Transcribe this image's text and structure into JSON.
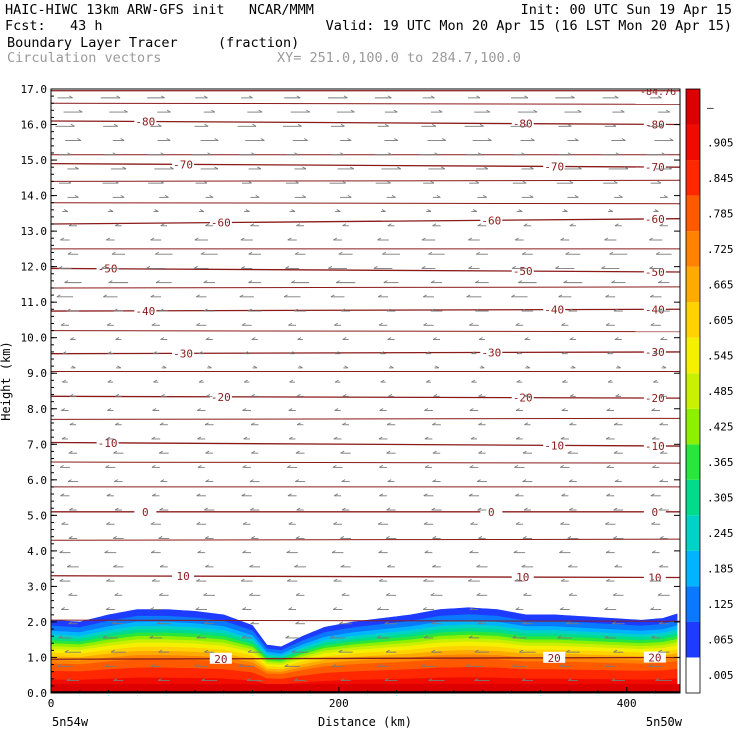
{
  "header": {
    "line1_left": "HAIC-HIWC 13km ARW-GFS init   NCAR/MMM",
    "line1_right": "Init: 00 UTC Sun 19 Apr 15",
    "line2_left": "Fcst:   43 h",
    "line2_right": "Valid: 19 UTC Mon 20 Apr 15 (16 LST Mon 20 Apr 15)",
    "line3_left": "Boundary Layer Tracer",
    "line3_unit": "(fraction)",
    "line4_left": "Circulation vectors",
    "line4_xy": "XY= 251.0,100.0 to 284.7,100.0"
  },
  "chart_data": {
    "type": "heatmap",
    "ylabel": "Height (km)",
    "xlabel": "Distance (km)",
    "ylim": [
      0,
      17
    ],
    "xlim": [
      0,
      437
    ],
    "y_ticks": [
      "0.0",
      "1.0",
      "2.0",
      "3.0",
      "4.0",
      "5.0",
      "6.0",
      "7.0",
      "8.0",
      "9.0",
      "10.0",
      "11.0",
      "12.0",
      "13.0",
      "14.0",
      "15.0",
      "16.0",
      "17.0"
    ],
    "x_ticks": [
      "0",
      "200",
      "400"
    ],
    "x_end_labels": {
      "left": "5n54w",
      "right": "5n50w"
    },
    "colorbar": {
      "labels": [
        ".005",
        ".065",
        ".125",
        ".185",
        ".245",
        ".305",
        ".365",
        ".425",
        ".485",
        ".545",
        ".605",
        ".665",
        ".725",
        ".785",
        ".845",
        ".905",
        "–"
      ],
      "colors": [
        "#ffffff",
        "#1e3cff",
        "#0a78ff",
        "#00b4ff",
        "#00d2c8",
        "#00dc8c",
        "#28e63c",
        "#8cf000",
        "#c8f000",
        "#f5f000",
        "#ffd200",
        "#ffaa00",
        "#ff8200",
        "#ff5a00",
        "#ff2800",
        "#f00a00",
        "#dc0000"
      ]
    },
    "temperature_contours": {
      "unit": "°C",
      "lines": [
        {
          "value": -84.76,
          "label": "-84.76",
          "y": [
            16.95,
            16.95
          ]
        },
        {
          "value": -80,
          "label": "-80",
          "y": [
            16.1,
            16.0
          ]
        },
        {
          "value": -70,
          "label": "-70",
          "y": [
            14.9,
            14.8
          ]
        },
        {
          "value": -60,
          "label": "-60",
          "y": [
            13.2,
            13.35
          ]
        },
        {
          "value": -50,
          "label": "-50",
          "y": [
            11.95,
            11.85
          ]
        },
        {
          "value": -40,
          "label": "-40",
          "y": [
            10.75,
            10.8
          ]
        },
        {
          "value": -30,
          "label": "-30",
          "y": [
            9.55,
            9.6
          ]
        },
        {
          "value": -20,
          "label": "-20",
          "y": [
            8.35,
            8.3
          ]
        },
        {
          "value": -10,
          "label": "-10",
          "y": [
            7.05,
            6.95
          ]
        },
        {
          "value": 0,
          "label": "0",
          "y": [
            5.1,
            5.1
          ]
        },
        {
          "value": 10,
          "label": "10",
          "y": [
            3.3,
            3.25
          ]
        },
        {
          "value": 20,
          "label": "20",
          "y": [
            0.95,
            1.0
          ]
        }
      ],
      "extra_unlabeled_y": [
        16.6,
        15.15,
        14.4,
        13.8,
        12.5,
        11.4,
        10.2,
        9.05,
        7.7,
        6.5,
        5.8,
        4.3,
        2.05
      ]
    },
    "tracer_top_km": {
      "x": [
        0,
        20,
        40,
        60,
        80,
        100,
        120,
        140,
        150,
        160,
        175,
        190,
        210,
        230,
        250,
        270,
        290,
        310,
        330,
        350,
        370,
        390,
        410,
        425,
        437
      ],
      "y": [
        2.05,
        2.0,
        2.2,
        2.35,
        2.35,
        2.3,
        2.2,
        1.9,
        1.35,
        1.3,
        1.6,
        1.85,
        2.0,
        2.1,
        2.2,
        2.35,
        2.4,
        2.35,
        2.2,
        2.2,
        2.15,
        2.1,
        2.05,
        2.1,
        2.25
      ]
    },
    "terrain_km": 0.05,
    "vectors": {
      "description": "circulation vectors",
      "rows_km": [
        16.75,
        16.35,
        15.95,
        15.55,
        15.15,
        14.75,
        14.35,
        13.95,
        13.55,
        13.15,
        12.75,
        12.35,
        11.95,
        11.55,
        11.15,
        10.75,
        10.35,
        9.95,
        9.55,
        9.15,
        8.75,
        8.35,
        7.95,
        7.55,
        7.15,
        6.75,
        6.35,
        5.95,
        5.55,
        5.15,
        4.75,
        4.35,
        3.95,
        3.55,
        3.15,
        2.75,
        2.35,
        1.95,
        1.55,
        1.15,
        0.75,
        0.35
      ],
      "u_by_row": [
        1,
        1,
        1,
        1,
        1,
        1,
        0.8,
        0.5,
        0.1,
        -0.3,
        -0.6,
        -0.9,
        -1,
        -1,
        -0.8,
        -0.6,
        -0.4,
        -0.2,
        -0.1,
        0.05,
        -0.1,
        -0.2,
        -0.3,
        -0.3,
        -0.3,
        -0.4,
        -0.4,
        -0.4,
        -0.4,
        -0.4,
        -0.4,
        -0.45,
        -0.5,
        -0.5,
        -0.5,
        -0.5,
        -0.5,
        -0.6,
        -0.7,
        -0.8,
        -0.8,
        -0.8
      ]
    }
  }
}
